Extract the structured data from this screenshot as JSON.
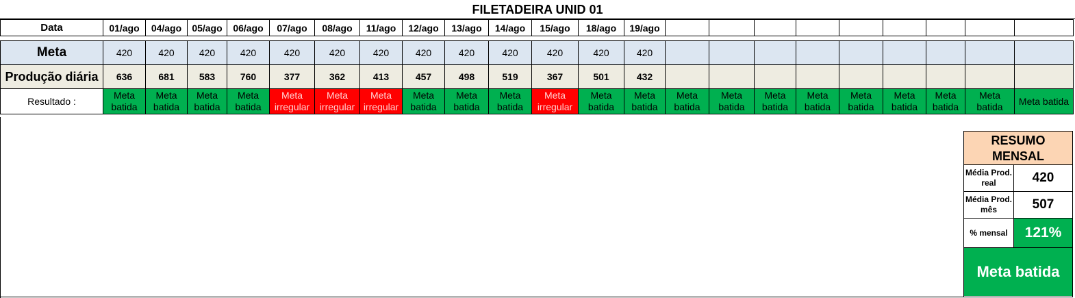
{
  "title": "FILETADEIRA UNID 01",
  "labels": {
    "data": "Data",
    "meta": "Meta",
    "producao": "Produção diária",
    "resultado": "Resultado :"
  },
  "dates": [
    "01/ago",
    "04/ago",
    "05/ago",
    "06/ago",
    "07/ago",
    "08/ago",
    "11/ago",
    "12/ago",
    "13/ago",
    "14/ago",
    "15/ago",
    "18/ago",
    "19/ago",
    "",
    "",
    "",
    "",
    "",
    "",
    "",
    "",
    "",
    ""
  ],
  "meta": [
    "420",
    "420",
    "420",
    "420",
    "420",
    "420",
    "420",
    "420",
    "420",
    "420",
    "420",
    "420",
    "420",
    "",
    "",
    "",
    "",
    "",
    "",
    "",
    "",
    "",
    ""
  ],
  "producao": [
    "636",
    "681",
    "583",
    "760",
    "377",
    "362",
    "413",
    "457",
    "498",
    "519",
    "367",
    "501",
    "432",
    "",
    "",
    "",
    "",
    "",
    "",
    "",
    "",
    "",
    ""
  ],
  "resultado": [
    {
      "text": "Meta batida",
      "status": "green"
    },
    {
      "text": "Meta batida",
      "status": "green"
    },
    {
      "text": "Meta batida",
      "status": "green"
    },
    {
      "text": "Meta batida",
      "status": "green"
    },
    {
      "text": "Meta irregular",
      "status": "red"
    },
    {
      "text": "Meta irregular",
      "status": "red"
    },
    {
      "text": "Meta irregular",
      "status": "red"
    },
    {
      "text": "Meta batida",
      "status": "green"
    },
    {
      "text": "Meta batida",
      "status": "green"
    },
    {
      "text": "Meta batida",
      "status": "green"
    },
    {
      "text": "Meta irregular",
      "status": "red"
    },
    {
      "text": "Meta batida",
      "status": "green"
    },
    {
      "text": "Meta batida",
      "status": "green"
    },
    {
      "text": "Meta batida",
      "status": "green"
    },
    {
      "text": "Meta batida",
      "status": "green"
    },
    {
      "text": "Meta batida",
      "status": "green"
    },
    {
      "text": "Meta batida",
      "status": "green"
    },
    {
      "text": "Meta batida",
      "status": "green"
    },
    {
      "text": "Meta batida",
      "status": "green"
    },
    {
      "text": "Meta batida",
      "status": "green"
    },
    {
      "text": "Meta batida",
      "status": "green"
    },
    {
      "text": "Meta batida",
      "status": "green"
    }
  ],
  "resultado_last": "Meta batida",
  "resumo": {
    "title": "RESUMO MENSAL",
    "media_real_label": "Média Prod. real",
    "media_real_value": "420",
    "media_mes_label": "Média Prod. mês",
    "media_mes_value": "507",
    "pct_label": "% mensal",
    "pct_value": "121%",
    "status": "Meta batida"
  },
  "colors": {
    "green": "#00b050",
    "red": "#ff0000",
    "meta_row": "#dce6f1",
    "prod_row": "#eeece1",
    "resumo_header": "#fcd5b4"
  }
}
